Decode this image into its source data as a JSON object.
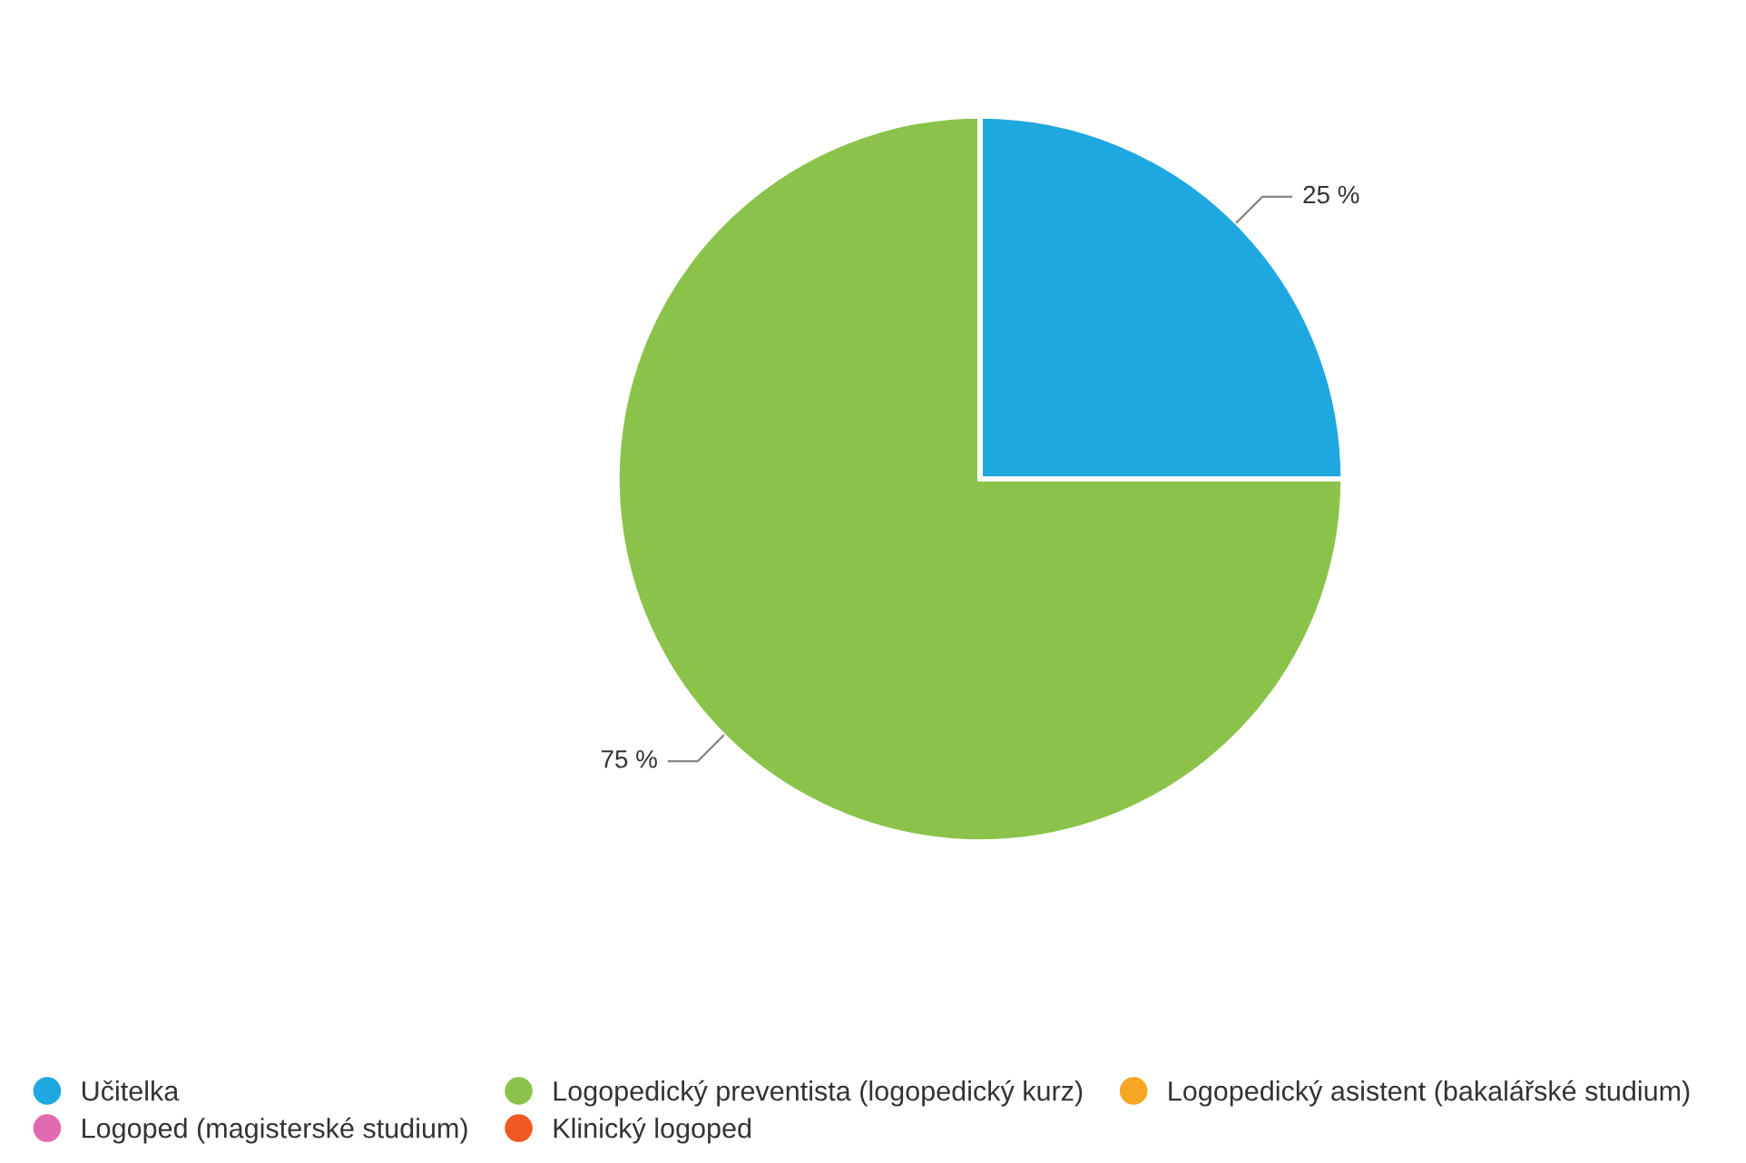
{
  "chart_data": {
    "type": "pie",
    "categories": [
      "Učitelka",
      "Logopedický preventista (logopedický kurz)",
      "Logopedický asistent (bakalářské studium)",
      "Logoped (magisterské studium)",
      "Klinický logoped"
    ],
    "values": [
      25,
      75,
      0,
      0,
      0
    ],
    "colors": [
      "#1fa8e0",
      "#8bc34a",
      "#f5a623",
      "#e36aae",
      "#f05a22"
    ],
    "value_labels": [
      "25 %",
      "75 %",
      null,
      null,
      null
    ],
    "legend": "bottom"
  }
}
